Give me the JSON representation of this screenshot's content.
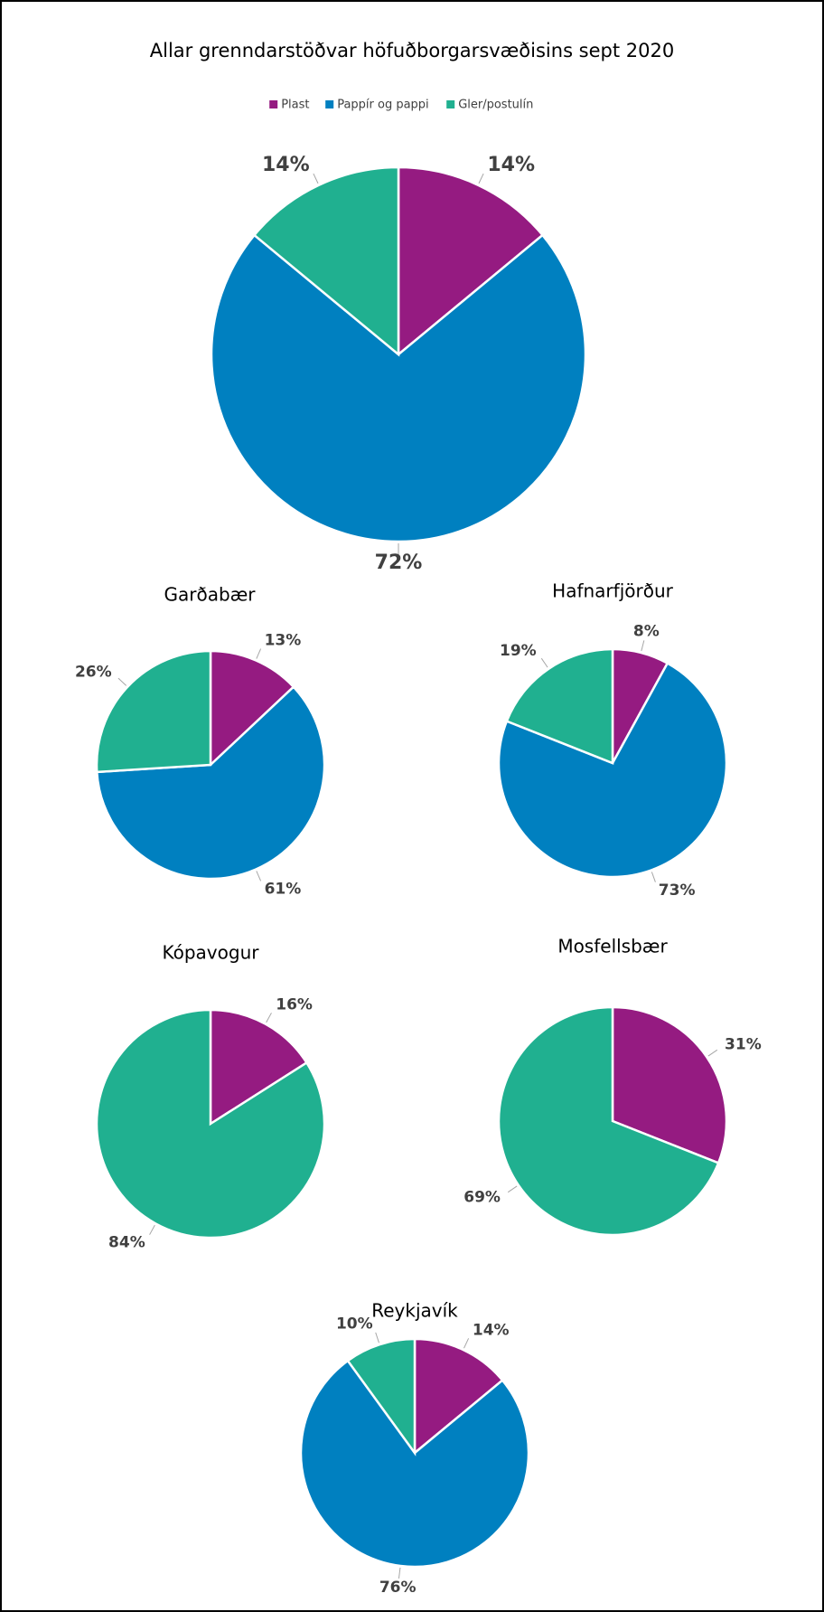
{
  "chart_data": [
    {
      "type": "pie",
      "title": "Allar grenndarstöðvar höfuðborgarsvæðisins sept 2020",
      "categories": [
        "Plast",
        "Pappír og pappi",
        "Gler/postulín"
      ],
      "values": [
        14,
        72,
        14
      ],
      "value_labels": [
        "14%",
        "72%",
        "14%"
      ],
      "colors": [
        "#951b81",
        "#0080c0",
        "#20b090"
      ],
      "legend": "top"
    },
    {
      "type": "pie",
      "title": "Garðabær",
      "categories": [
        "Plast",
        "Pappír og pappi",
        "Gler/postulín"
      ],
      "values": [
        13,
        61,
        26
      ],
      "value_labels": [
        "13%",
        "61%",
        "26%"
      ],
      "colors": [
        "#951b81",
        "#0080c0",
        "#20b090"
      ]
    },
    {
      "type": "pie",
      "title": "Hafnarfjörður",
      "categories": [
        "Plast",
        "Pappír og pappi",
        "Gler/postulín"
      ],
      "values": [
        8,
        73,
        19
      ],
      "value_labels": [
        "8%",
        "73%",
        "19%"
      ],
      "colors": [
        "#951b81",
        "#0080c0",
        "#20b090"
      ]
    },
    {
      "type": "pie",
      "title": "Kópavogur",
      "categories": [
        "Plast",
        "Gler/postulín"
      ],
      "values": [
        16,
        84
      ],
      "value_labels": [
        "16%",
        "84%"
      ],
      "colors": [
        "#951b81",
        "#20b090"
      ]
    },
    {
      "type": "pie",
      "title": "Mosfellsbær",
      "categories": [
        "Plast",
        "Gler/postulín"
      ],
      "values": [
        31,
        69
      ],
      "value_labels": [
        "31%",
        "69%"
      ],
      "colors": [
        "#951b81",
        "#20b090"
      ]
    },
    {
      "type": "pie",
      "title": "Reykjavík",
      "categories": [
        "Plast",
        "Pappír og pappi",
        "Gler/postulín"
      ],
      "values": [
        14,
        76,
        10
      ],
      "value_labels": [
        "14%",
        "76%",
        "10%"
      ],
      "colors": [
        "#951b81",
        "#0080c0",
        "#20b090"
      ]
    }
  ]
}
